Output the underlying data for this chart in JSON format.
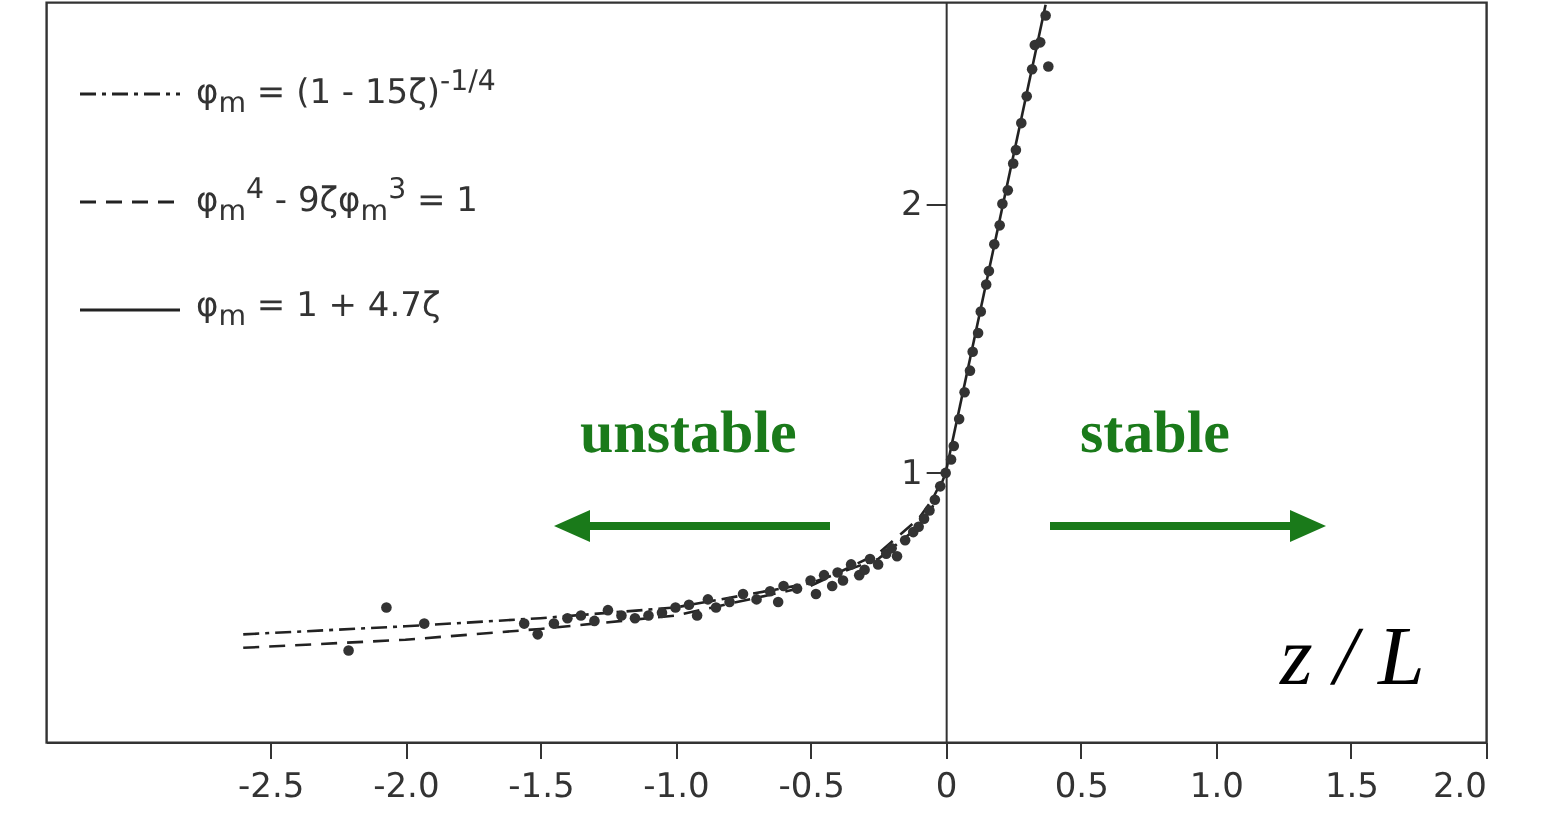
{
  "chart_data": {
    "type": "scatter",
    "xlabel": "z / L",
    "xlim": [
      -3.33,
      2.0
    ],
    "xticks": [
      -2.5,
      {
        "value": -2,
        "label": "-2.0"
      },
      -1.5,
      {
        "value": -1,
        "label": "-1.0"
      },
      -0.5,
      0,
      0.5,
      {
        "value": 1,
        "label": "1.0"
      },
      1.5,
      {
        "value": 2,
        "label": "2.0"
      }
    ],
    "ylim": [
      0,
      2.75
    ],
    "yticks": [
      1,
      2
    ],
    "grid": false,
    "legend": "top left",
    "annotations": [
      "unstable",
      "stable"
    ],
    "series": [
      {
        "name": "φ$_{m}$ = (1 - 15ζ)$^{-1/4}$",
        "type": "line",
        "line_style": "dashdot",
        "color": "#222222",
        "x": [
          -2.6,
          -2.0,
          -1.5,
          -1.0,
          -0.5,
          -0.25,
          -0.1,
          -0.05,
          0
        ],
        "values": [
          0.4,
          0.43,
          0.46,
          0.5,
          0.59,
          0.68,
          0.8,
          0.87,
          1
        ]
      },
      {
        "name": "φ$_{m}$$^{4}$ - 9ζφ$_{m}$$^{3}$ = 1",
        "type": "line",
        "line_style": "dashed",
        "color": "#222222",
        "x": [
          -2.6,
          -2.0,
          -1.5,
          -1.0,
          -0.5,
          -0.25,
          -0.1,
          -0.05,
          0
        ],
        "values": [
          0.35,
          0.38,
          0.42,
          0.47,
          0.58,
          0.7,
          0.83,
          0.9,
          1
        ]
      },
      {
        "name": "φ$_{m}$ = 1 + 4.7ζ",
        "type": "line",
        "line_style": "solid",
        "color": "#222222",
        "x": [
          0,
          0.37
        ],
        "values": [
          1,
          2.74
        ]
      },
      {
        "marker": "circle",
        "color": "#333333",
        "x": [
          -2.21,
          -2.07,
          -1.93,
          -1.56,
          -1.51,
          -1.45,
          -1.4,
          -1.35,
          -1.3,
          -1.25,
          -1.2,
          -1.15,
          -1.1,
          -1.05,
          -1.0,
          -0.95,
          -0.92,
          -0.88,
          -0.85,
          -0.8,
          -0.75,
          -0.7,
          -0.65,
          -0.62,
          -0.6,
          -0.55,
          -0.5,
          -0.48,
          -0.45,
          -0.42,
          -0.4,
          -0.38,
          -0.35,
          -0.32,
          -0.3,
          -0.28,
          -0.25,
          -0.22,
          -0.2,
          -0.18,
          -0.15,
          -0.12,
          -0.1,
          -0.08,
          -0.06,
          -0.04,
          -0.02,
          0.0,
          0.02,
          0.03,
          0.05,
          0.07,
          0.09,
          0.1,
          0.12,
          0.13,
          0.15,
          0.16,
          0.18,
          0.2,
          0.21,
          0.23,
          0.25,
          0.26,
          0.28,
          0.3,
          0.32,
          0.33,
          0.35,
          0.37,
          0.38
        ],
        "values": [
          0.34,
          0.5,
          0.44,
          0.44,
          0.4,
          0.44,
          0.46,
          0.47,
          0.45,
          0.49,
          0.47,
          0.46,
          0.47,
          0.48,
          0.5,
          0.51,
          0.47,
          0.53,
          0.5,
          0.52,
          0.55,
          0.53,
          0.56,
          0.52,
          0.58,
          0.57,
          0.6,
          0.55,
          0.62,
          0.58,
          0.63,
          0.6,
          0.66,
          0.62,
          0.64,
          0.68,
          0.66,
          0.7,
          0.72,
          0.69,
          0.75,
          0.78,
          0.8,
          0.83,
          0.86,
          0.9,
          0.95,
          1.0,
          1.05,
          1.1,
          1.2,
          1.3,
          1.38,
          1.45,
          1.52,
          1.6,
          1.7,
          1.75,
          1.85,
          1.92,
          2.0,
          2.05,
          2.15,
          2.2,
          2.3,
          2.4,
          2.5,
          2.59,
          2.6,
          2.7,
          2.51
        ]
      }
    ]
  }
}
